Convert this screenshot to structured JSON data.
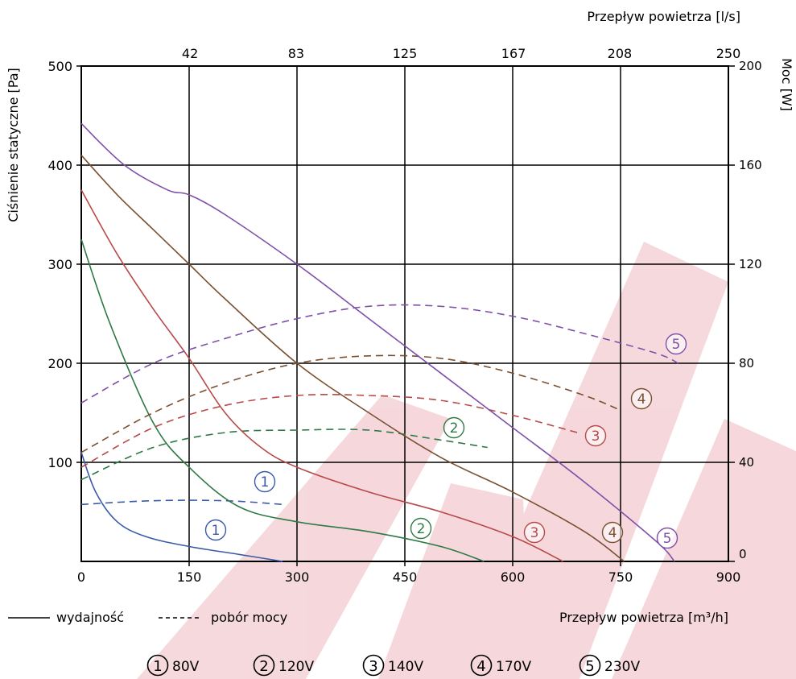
{
  "chart_data": {
    "type": "line",
    "title": "",
    "x_bottom": {
      "label": "Przepływ powietrza [m³/h]",
      "range": [
        0,
        900
      ],
      "ticks": [
        "0",
        "150",
        "300",
        "450",
        "600",
        "750",
        "900"
      ]
    },
    "x_top": {
      "label": "Przepływ powietrza [l/s]",
      "range": [
        0,
        250
      ],
      "ticks": [
        "42",
        "83",
        "125",
        "167",
        "208",
        "250"
      ]
    },
    "y_left": {
      "label": "Ciśnienie statyczne [Pa]",
      "range": [
        0,
        500
      ],
      "ticks": [
        "100",
        "200",
        "300",
        "400",
        "500"
      ]
    },
    "y_right": {
      "label": "Moc [W]",
      "range": [
        0,
        200
      ],
      "ticks": [
        "0",
        "40",
        "80",
        "120",
        "160",
        "200"
      ]
    },
    "grid": true,
    "line_style_legend": {
      "solid_label": "wydajność",
      "dashed_label": "pobór mocy"
    },
    "series_legend": [
      {
        "marker": "1",
        "label": "80V"
      },
      {
        "marker": "2",
        "label": "120V"
      },
      {
        "marker": "3",
        "label": "140V"
      },
      {
        "marker": "4",
        "label": "170V"
      },
      {
        "marker": "5",
        "label": "230V"
      }
    ],
    "series": [
      {
        "name": "80V",
        "marker": "1",
        "color": "#3a5aa8",
        "pressure": {
          "x": [
            0,
            20,
            50,
            90,
            150,
            220,
            280
          ],
          "y": [
            110,
            70,
            40,
            25,
            15,
            7,
            0
          ]
        },
        "power": {
          "x": [
            0,
            100,
            200,
            280
          ],
          "y": [
            23,
            24.5,
            24.5,
            23
          ]
        }
      },
      {
        "name": "120V",
        "marker": "2",
        "color": "#2e7a45",
        "pressure": {
          "x": [
            0,
            40,
            100,
            150,
            220,
            300,
            400,
            500,
            560
          ],
          "y": [
            325,
            240,
            140,
            95,
            55,
            40,
            30,
            15,
            0
          ]
        },
        "power": {
          "x": [
            0,
            100,
            200,
            300,
            400,
            500,
            565
          ],
          "y": [
            33,
            46,
            52,
            53,
            53,
            49,
            46
          ]
        }
      },
      {
        "name": "140V",
        "marker": "3",
        "color": "#b84a48",
        "pressure": {
          "x": [
            0,
            50,
            100,
            150,
            200,
            250,
            300,
            400,
            500,
            600,
            670
          ],
          "y": [
            375,
            310,
            255,
            205,
            150,
            115,
            95,
            70,
            50,
            25,
            0
          ]
        },
        "power": {
          "x": [
            0,
            100,
            200,
            300,
            400,
            500,
            600,
            690
          ],
          "y": [
            38,
            54,
            63,
            67,
            67,
            65,
            59,
            52
          ]
        }
      },
      {
        "name": "170V",
        "marker": "4",
        "color": "#7a5030",
        "pressure": {
          "x": [
            0,
            50,
            100,
            150,
            200,
            300,
            400,
            500,
            600,
            700,
            755
          ],
          "y": [
            410,
            370,
            335,
            300,
            265,
            200,
            150,
            105,
            70,
            30,
            0
          ]
        },
        "power": {
          "x": [
            0,
            100,
            200,
            300,
            400,
            500,
            600,
            700,
            750
          ],
          "y": [
            44,
            60,
            72,
            80,
            83,
            82,
            76,
            67,
            61
          ]
        }
      },
      {
        "name": "230V",
        "marker": "5",
        "color": "#8050a8",
        "pressure": {
          "x": [
            0,
            60,
            120,
            150,
            200,
            300,
            400,
            500,
            600,
            700,
            800,
            825
          ],
          "y": [
            442,
            400,
            375,
            370,
            350,
            300,
            245,
            190,
            135,
            80,
            20,
            0
          ]
        },
        "power": {
          "x": [
            0,
            100,
            200,
            300,
            400,
            500,
            600,
            700,
            800,
            830
          ],
          "y": [
            64,
            80,
            90,
            98,
            103,
            103,
            99,
            92,
            84,
            80
          ]
        }
      }
    ]
  }
}
